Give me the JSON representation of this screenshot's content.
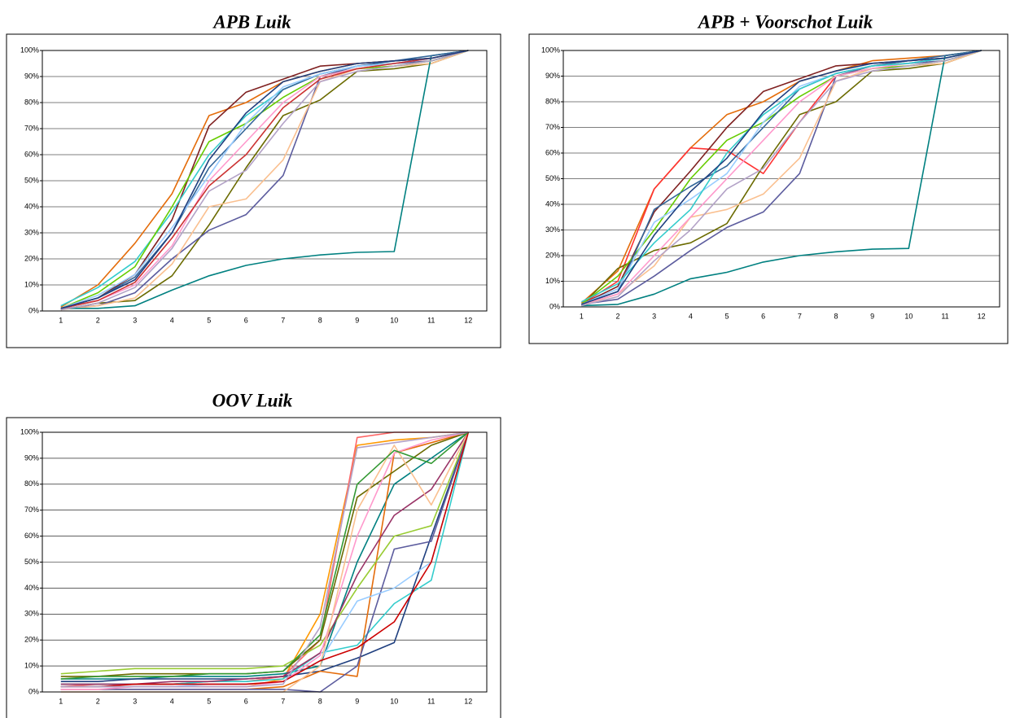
{
  "chart_data": [
    {
      "type": "line",
      "title": "APB Luik",
      "categories": [
        "1",
        "2",
        "3",
        "4",
        "5",
        "6",
        "7",
        "8",
        "9",
        "10",
        "11",
        "12"
      ],
      "ylim": [
        0,
        100
      ],
      "yticks": [
        {
          "value": 0,
          "label": "0%"
        },
        {
          "value": 10,
          "label": "10%"
        },
        {
          "value": 20,
          "label": "20%"
        },
        {
          "value": 30,
          "label": "30%"
        },
        {
          "value": 40,
          "label": "40%"
        },
        {
          "value": 50,
          "label": "50%"
        },
        {
          "value": 60,
          "label": "60%"
        },
        {
          "value": 70,
          "label": "70%"
        },
        {
          "value": 80,
          "label": "80%"
        },
        {
          "value": 90,
          "label": "90%"
        },
        {
          "value": 100,
          "label": "100%"
        }
      ],
      "grid": true,
      "series": [
        {
          "color": "#e46c0a",
          "values": [
            1.5,
            10,
            26,
            45,
            75,
            80,
            88,
            92,
            95,
            96,
            97,
            100
          ]
        },
        {
          "color": "#7f2020",
          "values": [
            1,
            5,
            14,
            35,
            71,
            84,
            89,
            94,
            95,
            96,
            97,
            100
          ]
        },
        {
          "color": "#6b6b00",
          "values": [
            0.5,
            3,
            4,
            13.5,
            33,
            55,
            75,
            81,
            92,
            93,
            95,
            100
          ]
        },
        {
          "color": "#5c5c9e",
          "values": [
            1,
            2,
            7,
            20,
            31,
            37,
            52,
            90,
            94,
            95,
            96,
            100
          ]
        },
        {
          "color": "#fac090",
          "values": [
            0.5,
            2,
            5,
            18,
            40,
            43,
            58,
            88,
            93,
            94,
            95,
            100
          ]
        },
        {
          "color": "#008080",
          "values": [
            1,
            1,
            2,
            8,
            13.5,
            17.5,
            20,
            21.5,
            22.5,
            22.8,
            98,
            100
          ]
        },
        {
          "color": "#33cccc",
          "values": [
            2,
            9,
            19,
            38,
            60,
            75,
            85,
            91,
            94,
            95,
            97,
            100
          ]
        },
        {
          "color": "#66cc00",
          "values": [
            1,
            7,
            17,
            40,
            65,
            72,
            82,
            90,
            93,
            94,
            96,
            100
          ]
        },
        {
          "color": "#336699",
          "values": [
            1,
            5,
            13,
            30,
            55,
            70,
            85,
            91,
            94,
            96,
            98,
            100
          ]
        },
        {
          "color": "#ff99cc",
          "values": [
            1,
            4,
            10,
            25,
            50,
            65,
            80,
            90,
            93,
            95,
            97,
            100
          ]
        },
        {
          "color": "#99ccff",
          "values": [
            1,
            6,
            14,
            32,
            52,
            72,
            86,
            91,
            94,
            95,
            97,
            100
          ]
        },
        {
          "color": "#cc3333",
          "values": [
            1,
            4,
            11,
            28,
            48,
            60,
            78,
            89,
            93,
            95,
            97,
            100
          ]
        },
        {
          "color": "#b3a2c7",
          "values": [
            0.5,
            3,
            9,
            24,
            46,
            54,
            72,
            88,
            92,
            94,
            96,
            100
          ]
        },
        {
          "color": "#1f3f7f",
          "values": [
            1,
            5,
            12,
            30,
            58,
            76,
            88,
            92,
            95,
            96,
            97,
            100
          ]
        }
      ]
    },
    {
      "type": "line",
      "title": "APB + Voorschot Luik",
      "categories": [
        "1",
        "2",
        "3",
        "4",
        "5",
        "6",
        "7",
        "8",
        "9",
        "10",
        "11",
        "12"
      ],
      "ylim": [
        0,
        100
      ],
      "yticks": [
        {
          "value": 0,
          "label": "0%"
        },
        {
          "value": 10,
          "label": "10%"
        },
        {
          "value": 20,
          "label": "20%"
        },
        {
          "value": 30,
          "label": "30%"
        },
        {
          "value": 40,
          "label": "40%"
        },
        {
          "value": 50,
          "label": "50%"
        },
        {
          "value": 60,
          "label": "60%"
        },
        {
          "value": 70,
          "label": "70%"
        },
        {
          "value": 80,
          "label": "80%"
        },
        {
          "value": 90,
          "label": "90%"
        },
        {
          "value": 100,
          "label": "100%"
        }
      ],
      "grid": true,
      "series": [
        {
          "color": "#e46c0a",
          "values": [
            1.5,
            14,
            46,
            62,
            75,
            80,
            88,
            92,
            96,
            97,
            98,
            100
          ]
        },
        {
          "color": "#ff3333",
          "values": [
            1,
            10,
            46,
            62,
            61,
            52,
            72,
            90,
            94,
            96,
            97,
            100
          ]
        },
        {
          "color": "#6b6b00",
          "values": [
            0.5,
            15,
            22,
            25,
            32.5,
            55,
            75,
            80,
            92,
            93,
            95,
            100
          ]
        },
        {
          "color": "#5c5c9e",
          "values": [
            1,
            3,
            12,
            22,
            31,
            37,
            52,
            90,
            94,
            95,
            96,
            100
          ]
        },
        {
          "color": "#fac090",
          "values": [
            0.5,
            5,
            16,
            35,
            38,
            44,
            58,
            88,
            93,
            94,
            95,
            100
          ]
        },
        {
          "color": "#008080",
          "values": [
            0.5,
            1,
            5,
            11,
            13.5,
            17.5,
            20,
            21.5,
            22.5,
            22.8,
            98,
            100
          ]
        },
        {
          "color": "#7f2020",
          "values": [
            1,
            8,
            37,
            53,
            70,
            84,
            89,
            94,
            95,
            96,
            97,
            100
          ]
        },
        {
          "color": "#66cc00",
          "values": [
            1,
            12,
            30,
            50,
            65,
            72,
            82,
            90,
            93,
            94,
            96,
            100
          ]
        },
        {
          "color": "#336699",
          "values": [
            1,
            6,
            38,
            47,
            55,
            70,
            85,
            91,
            94,
            96,
            98,
            100
          ]
        },
        {
          "color": "#ff99cc",
          "values": [
            1,
            5,
            20,
            35,
            50,
            65,
            80,
            90,
            93,
            95,
            97,
            100
          ]
        },
        {
          "color": "#99ccff",
          "values": [
            1,
            7,
            33,
            42,
            52,
            72,
            86,
            91,
            94,
            95,
            97,
            100
          ]
        },
        {
          "color": "#33cccc",
          "values": [
            2,
            9,
            25,
            38,
            60,
            75,
            85,
            91,
            94,
            95,
            97,
            100
          ]
        },
        {
          "color": "#b3a2c7",
          "values": [
            0.5,
            4,
            18,
            30,
            46,
            54,
            72,
            88,
            92,
            94,
            96,
            100
          ]
        },
        {
          "color": "#1f3f7f",
          "values": [
            1,
            6,
            28,
            45,
            58,
            76,
            88,
            92,
            95,
            96,
            97,
            100
          ]
        }
      ]
    },
    {
      "type": "line",
      "title": "OOV Luik",
      "categories": [
        "1",
        "2",
        "3",
        "4",
        "5",
        "6",
        "7",
        "8",
        "9",
        "10",
        "11",
        "12"
      ],
      "ylim": [
        0,
        100
      ],
      "yticks": [
        {
          "value": 0,
          "label": "0%"
        },
        {
          "value": 10,
          "label": "10%"
        },
        {
          "value": 20,
          "label": "20%"
        },
        {
          "value": 30,
          "label": "30%"
        },
        {
          "value": 40,
          "label": "40%"
        },
        {
          "value": 50,
          "label": "50%"
        },
        {
          "value": 60,
          "label": "60%"
        },
        {
          "value": 70,
          "label": "70%"
        },
        {
          "value": 80,
          "label": "80%"
        },
        {
          "value": 90,
          "label": "90%"
        },
        {
          "value": 100,
          "label": "100%"
        }
      ],
      "grid": true,
      "series": [
        {
          "color": "#ff9900",
          "values": [
            2,
            2,
            2,
            2,
            2,
            2,
            5,
            30,
            95,
            97,
            98,
            100
          ]
        },
        {
          "color": "#ff6666",
          "values": [
            2,
            3,
            3,
            3,
            4,
            4,
            6,
            20,
            98,
            100,
            100,
            100
          ]
        },
        {
          "color": "#008080",
          "values": [
            5,
            5,
            5,
            6,
            6,
            6,
            7,
            10,
            50,
            80,
            90,
            100
          ]
        },
        {
          "color": "#33cccc",
          "values": [
            3,
            3,
            3,
            3,
            4,
            4,
            5,
            15,
            18,
            34,
            43,
            100
          ]
        },
        {
          "color": "#1f3f7f",
          "values": [
            4,
            4,
            5,
            5,
            5,
            5,
            6,
            8,
            13,
            19,
            60,
            100
          ]
        },
        {
          "color": "#e46c0a",
          "values": [
            1,
            1,
            1,
            1,
            1,
            1,
            2,
            8,
            6,
            92,
            96,
            100
          ]
        },
        {
          "color": "#99cc33",
          "values": [
            7,
            8,
            9,
            9,
            9,
            9,
            10,
            18,
            40,
            60,
            64,
            100
          ]
        },
        {
          "color": "#993366",
          "values": [
            3,
            3,
            3,
            4,
            4,
            5,
            6,
            15,
            45,
            68,
            78,
            100
          ]
        },
        {
          "color": "#5c5c9e",
          "values": [
            1,
            1,
            1,
            1,
            1,
            1,
            1,
            0,
            10,
            55,
            58,
            100
          ]
        },
        {
          "color": "#6b6b00",
          "values": [
            6,
            6,
            7,
            7,
            7,
            7,
            8,
            20,
            75,
            85,
            95,
            100
          ]
        },
        {
          "color": "#99ccff",
          "values": [
            2,
            2,
            2,
            2,
            3,
            3,
            4,
            12,
            35,
            40,
            50,
            100
          ]
        },
        {
          "color": "#ff99cc",
          "values": [
            1,
            1,
            2,
            2,
            2,
            2,
            4,
            14,
            60,
            92,
            97,
            100
          ]
        },
        {
          "color": "#fac090",
          "values": [
            0,
            0,
            0,
            0,
            0,
            0,
            0,
            10,
            70,
            95,
            72,
            100
          ]
        },
        {
          "color": "#cc0000",
          "values": [
            2,
            2,
            3,
            3,
            3,
            3,
            4,
            12,
            17,
            27,
            50,
            100
          ]
        },
        {
          "color": "#339933",
          "values": [
            5,
            6,
            6,
            6,
            7,
            7,
            8,
            22,
            80,
            93,
            88,
            100
          ]
        },
        {
          "color": "#b3a2c7",
          "values": [
            2,
            2,
            2,
            2,
            2,
            2,
            3,
            25,
            94,
            96,
            98,
            100
          ]
        }
      ]
    }
  ]
}
